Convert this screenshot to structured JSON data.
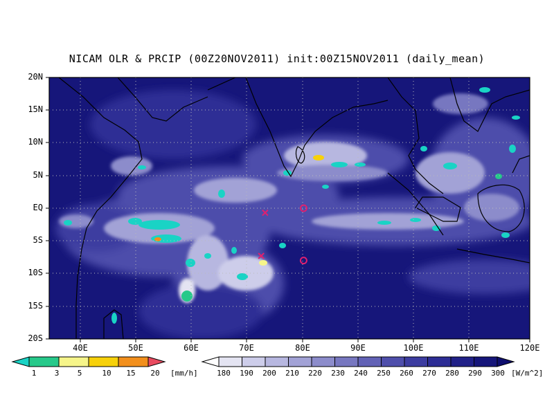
{
  "title": "NICAM OLR & PRCIP (00Z20NOV2011) init:00Z15NOV2011 (daily_mean)",
  "lat_labels": [
    "20N",
    "15N",
    "10N",
    "5N",
    "EQ",
    "5S",
    "10S",
    "15S",
    "20S"
  ],
  "lon_labels": [
    "40E",
    "50E",
    "60E",
    "70E",
    "80E",
    "90E",
    "100E",
    "110E",
    "120E"
  ],
  "precip_colorbar": {
    "levels": [
      "1",
      "3",
      "5",
      "10",
      "15",
      "20"
    ],
    "colors": [
      "#19d3c5",
      "#26c98a",
      "#f6f58a",
      "#f7d10a",
      "#f28f1c",
      "#e84a5f"
    ],
    "unit": "[mm/h]"
  },
  "olr_colorbar": {
    "levels": [
      "180",
      "190",
      "200",
      "210",
      "220",
      "230",
      "240",
      "250",
      "260",
      "270",
      "280",
      "290",
      "300"
    ],
    "colors": [
      "#ffffff",
      "#e4e4f2",
      "#cdcdea",
      "#b7b7e0",
      "#a2a2d6",
      "#8c8ccb",
      "#7777c0",
      "#6262b6",
      "#4e4eab",
      "#3c3ca0",
      "#2d2d95",
      "#212188",
      "#16167a",
      "#0e0e6e"
    ],
    "unit": "[W/m^2]"
  },
  "markers": [
    {
      "symbol": "x",
      "lon": 73.2,
      "lat": -0.7
    },
    {
      "symbol": "x",
      "lon": 72.5,
      "lat": -7.3
    },
    {
      "symbol": "o",
      "lon": 80.0,
      "lat": 0.0
    },
    {
      "symbol": "o",
      "lon": 80.0,
      "lat": -8.0
    }
  ],
  "map_extent": {
    "lon_min": 35,
    "lon_max": 120,
    "lat_min": -20,
    "lat_max": 20
  }
}
